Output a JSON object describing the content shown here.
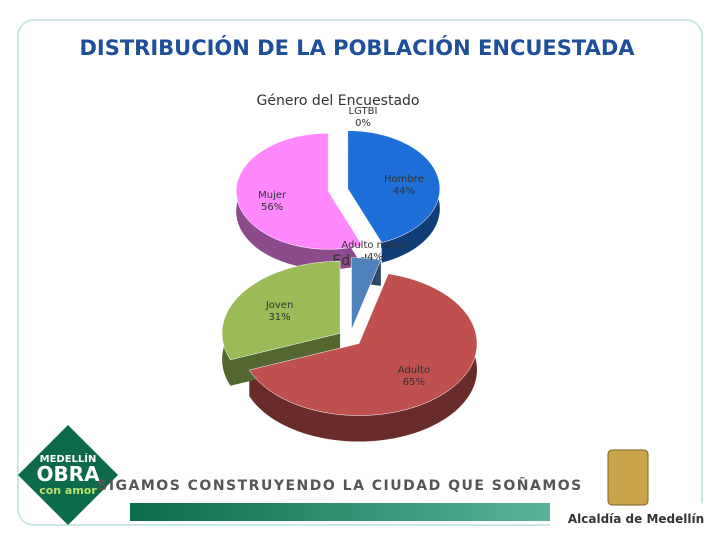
{
  "slide": {
    "title": "DISTRIBUCIÓN DE LA POBLACIÓN ENCUESTADA"
  },
  "chart_data": [
    {
      "type": "pie",
      "title": "Género del Encuestado",
      "categories": [
        "LGTBI",
        "Hombre",
        "Mujer"
      ],
      "values": [
        0,
        44,
        56
      ],
      "value_labels": [
        "0%",
        "44%",
        "56%"
      ],
      "colors": [
        "#ffffff",
        "#1f6fd8",
        "#ff88ff"
      ]
    },
    {
      "type": "pie",
      "title": "Edad",
      "categories": [
        "Adulto mayor",
        "Adulto",
        "Joven"
      ],
      "values": [
        4,
        65,
        31
      ],
      "value_labels": [
        "4%",
        "65%",
        "31%"
      ],
      "colors": [
        "#4f81bd",
        "#c0504d",
        "#9bbb59"
      ]
    }
  ],
  "footer": {
    "logo_top": "MEDELLÍN",
    "logo_main": "OBRA",
    "logo_bottom": "con amor",
    "slogan": "SIGAMOS CONSTRUYENDO LA CIUDAD QUE SOÑAMOS",
    "city": "Alcaldía de Medellín"
  }
}
